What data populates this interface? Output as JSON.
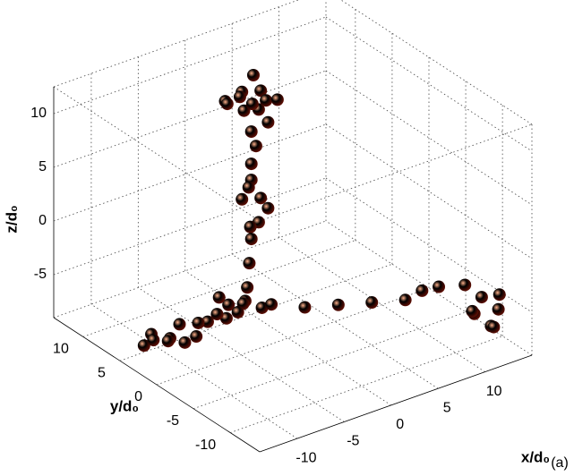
{
  "chart_data": {
    "type": "scatter3d",
    "xlabel": "x/d₀",
    "ylabel": "y/d₀",
    "zlabel": "z/d₀",
    "annotation": "(a)",
    "xlim": [
      -14,
      15
    ],
    "ylim": [
      -14,
      14
    ],
    "zlim": [
      -9,
      12.5
    ],
    "xticks": [
      -10,
      -5,
      0,
      5,
      10
    ],
    "yticks": [
      -10,
      -5,
      0,
      5,
      10
    ],
    "zticks": [
      -5,
      0,
      5,
      10
    ],
    "grid": true,
    "color": "#c8361c",
    "x": [
      -1,
      1,
      0,
      -2,
      1,
      0,
      2,
      -1,
      0,
      1,
      -2,
      0.5,
      0,
      0.5,
      0,
      0,
      -1,
      1,
      0,
      0.5,
      -0.5,
      1,
      0,
      -1,
      -2,
      -3,
      -4,
      -5,
      -2,
      -4,
      -6,
      -3,
      -5,
      -7,
      -8,
      -9,
      -10,
      -11,
      -12,
      -13,
      -13,
      -12,
      -11,
      -1,
      1,
      3,
      5,
      7,
      8,
      9,
      11,
      12,
      13,
      12,
      13,
      11,
      12.5,
      13.5
    ],
    "y": [
      5,
      5,
      4,
      6,
      6,
      3,
      4,
      7,
      6,
      4,
      4,
      5.5,
      5,
      5,
      5,
      5,
      5,
      5,
      4,
      6,
      4.5,
      4,
      5,
      4,
      3,
      2,
      3,
      2,
      1,
      1,
      2,
      3,
      3,
      2,
      2,
      1,
      2,
      2,
      1,
      2,
      3,
      3,
      0,
      1,
      -1,
      -3,
      -5,
      -7,
      -8,
      -9,
      -10,
      -11,
      -12,
      -10,
      -11,
      -11,
      -12,
      -11.5
    ],
    "z": [
      12,
      11.5,
      10.5,
      11,
      12.5,
      11.8,
      10.8,
      10,
      9.5,
      9,
      12.3,
      10.2,
      8,
      6.5,
      5,
      3.5,
      2,
      1.5,
      0,
      2.2,
      -0.5,
      1,
      -2,
      -3.5,
      -5,
      -5.5,
      -6,
      -6.5,
      -6,
      -5,
      -5.8,
      -7,
      -5,
      -6.2,
      -6,
      -6.5,
      -5.5,
      -6.5,
      -6,
      -5.5,
      -7,
      -6.8,
      -6,
      -6,
      -6,
      -5.5,
      -5,
      -4.5,
      -3.5,
      -3,
      -3,
      -4,
      -5,
      -6,
      -7,
      -5,
      -6.5,
      -4
    ]
  }
}
